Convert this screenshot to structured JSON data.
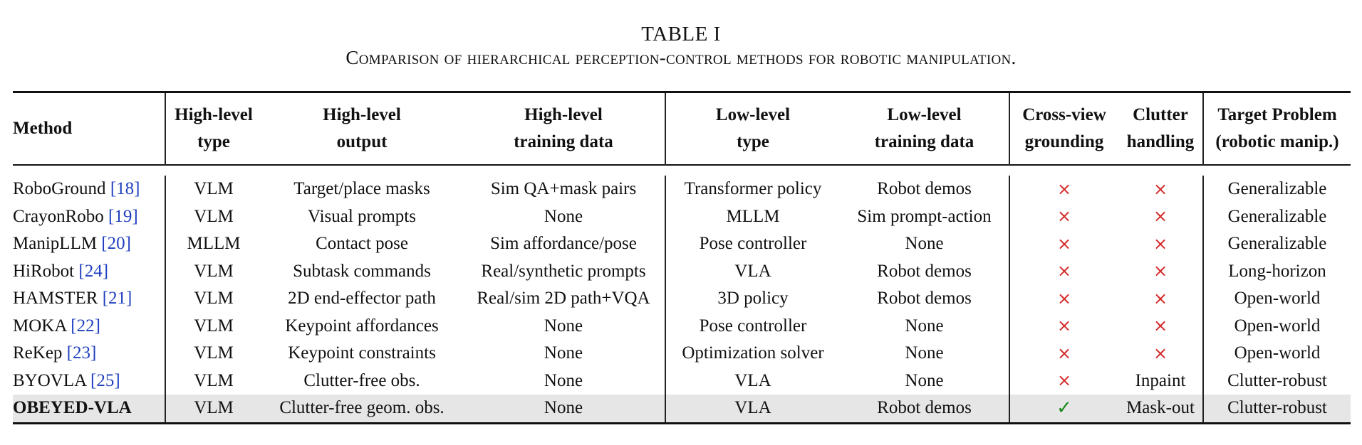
{
  "caption": {
    "number": "TABLE I",
    "title": "Comparison of hierarchical perception-control methods for robotic manipulation."
  },
  "columns": [
    [
      "Method"
    ],
    [
      "High-level",
      "type"
    ],
    [
      "High-level",
      "output"
    ],
    [
      "High-level",
      "training data"
    ],
    [
      "Low-level",
      "type"
    ],
    [
      "Low-level",
      "training data"
    ],
    [
      "Cross-view",
      "grounding"
    ],
    [
      "Clutter",
      "handling"
    ],
    [
      "Target Problem",
      "(robotic manip.)"
    ]
  ],
  "rows": [
    {
      "method": "RoboGround",
      "cite": "[18]",
      "hl_type": "VLM",
      "hl_output": "Target/place masks",
      "hl_data": "Sim QA+mask pairs",
      "ll_type": "Transformer policy",
      "ll_data": "Robot demos",
      "cross_view": "×",
      "clutter": "×",
      "target": "Generalizable"
    },
    {
      "method": "CrayonRobo",
      "cite": "[19]",
      "hl_type": "VLM",
      "hl_output": "Visual prompts",
      "hl_data": "None",
      "ll_type": "MLLM",
      "ll_data": "Sim prompt-action",
      "cross_view": "×",
      "clutter": "×",
      "target": "Generalizable"
    },
    {
      "method": "ManipLLM",
      "cite": "[20]",
      "hl_type": "MLLM",
      "hl_output": "Contact pose",
      "hl_data": "Sim affordance/pose",
      "ll_type": "Pose controller",
      "ll_data": "None",
      "cross_view": "×",
      "clutter": "×",
      "target": "Generalizable"
    },
    {
      "method": "HiRobot",
      "cite": "[24]",
      "hl_type": "VLM",
      "hl_output": "Subtask commands",
      "hl_data": "Real/synthetic prompts",
      "ll_type": "VLA",
      "ll_data": "Robot demos",
      "cross_view": "×",
      "clutter": "×",
      "target": "Long-horizon"
    },
    {
      "method": "HAMSTER",
      "cite": "[21]",
      "hl_type": "VLM",
      "hl_output": "2D end-effector path",
      "hl_data": "Real/sim 2D path+VQA",
      "ll_type": "3D policy",
      "ll_data": "Robot demos",
      "cross_view": "×",
      "clutter": "×",
      "target": "Open-world"
    },
    {
      "method": "MOKA",
      "cite": "[22]",
      "hl_type": "VLM",
      "hl_output": "Keypoint affordances",
      "hl_data": "None",
      "ll_type": "Pose controller",
      "ll_data": "None",
      "cross_view": "×",
      "clutter": "×",
      "target": "Open-world"
    },
    {
      "method": "ReKep",
      "cite": "[23]",
      "hl_type": "VLM",
      "hl_output": "Keypoint constraints",
      "hl_data": "None",
      "ll_type": "Optimization solver",
      "ll_data": "None",
      "cross_view": "×",
      "clutter": "×",
      "target": "Open-world"
    },
    {
      "method": "BYOVLA",
      "cite": "[25]",
      "hl_type": "VLM",
      "hl_output": "Clutter-free obs.",
      "hl_data": "None",
      "ll_type": "VLA",
      "ll_data": "None",
      "cross_view": "×",
      "clutter": "Inpaint",
      "target": "Clutter-robust"
    }
  ],
  "ours": {
    "method": "OBEYED-VLA",
    "hl_type": "VLM",
    "hl_output": "Clutter-free geom. obs.",
    "hl_data": "None",
    "ll_type": "VLA",
    "ll_data": "Robot demos",
    "cross_view": "✓",
    "clutter": "Mask-out",
    "target": "Clutter-robust"
  },
  "colors": {
    "citation": "#1f3fbf",
    "cross": "#d42a2a",
    "check": "#1a8a1a",
    "highlight_row": "#e6e6e6"
  }
}
